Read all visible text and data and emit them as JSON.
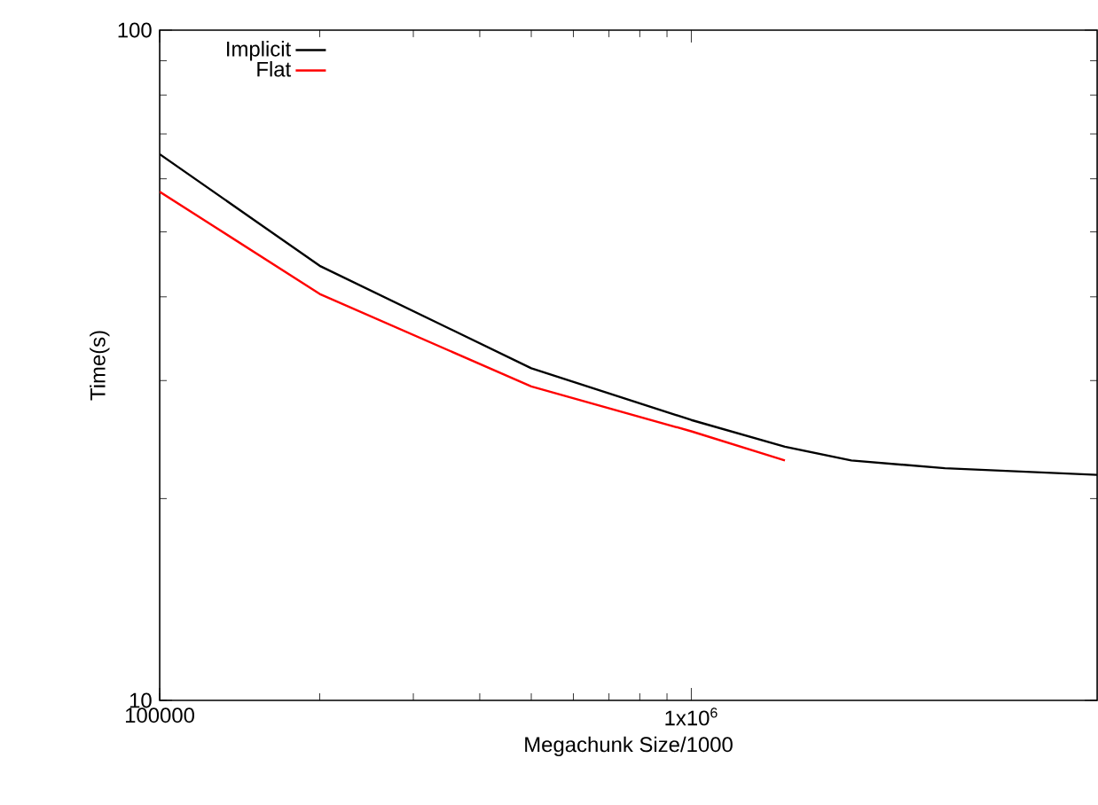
{
  "chart_data": {
    "type": "line",
    "xlabel": "Megachunk Size/1000",
    "ylabel": "Time(s)",
    "log": "xy",
    "xlim": [
      100000,
      5800000
    ],
    "ylim": [
      10,
      100
    ],
    "xticks": [
      {
        "value": 100000,
        "label": "100000"
      },
      {
        "value": 1000000,
        "label": "1x10$^{6}$"
      }
    ],
    "yticks": [
      10,
      100
    ],
    "grid": false,
    "legend": "top left",
    "marker": "none",
    "line_style": "solid",
    "series": [
      {
        "name": "Implicit",
        "color": "#000000",
        "x": [
          100000,
          200000,
          500000,
          1000000,
          1500000,
          2000000,
          3000000,
          5800000
        ],
        "values": [
          65.3,
          44.5,
          31.3,
          26.2,
          23.9,
          22.8,
          22.2,
          21.7
        ]
      },
      {
        "name": "Flat",
        "color": "#ff0000",
        "x": [
          100000,
          200000,
          500000,
          1000000,
          1500000
        ],
        "values": [
          57.4,
          40.4,
          29.4,
          25.2,
          22.8
        ]
      }
    ]
  }
}
